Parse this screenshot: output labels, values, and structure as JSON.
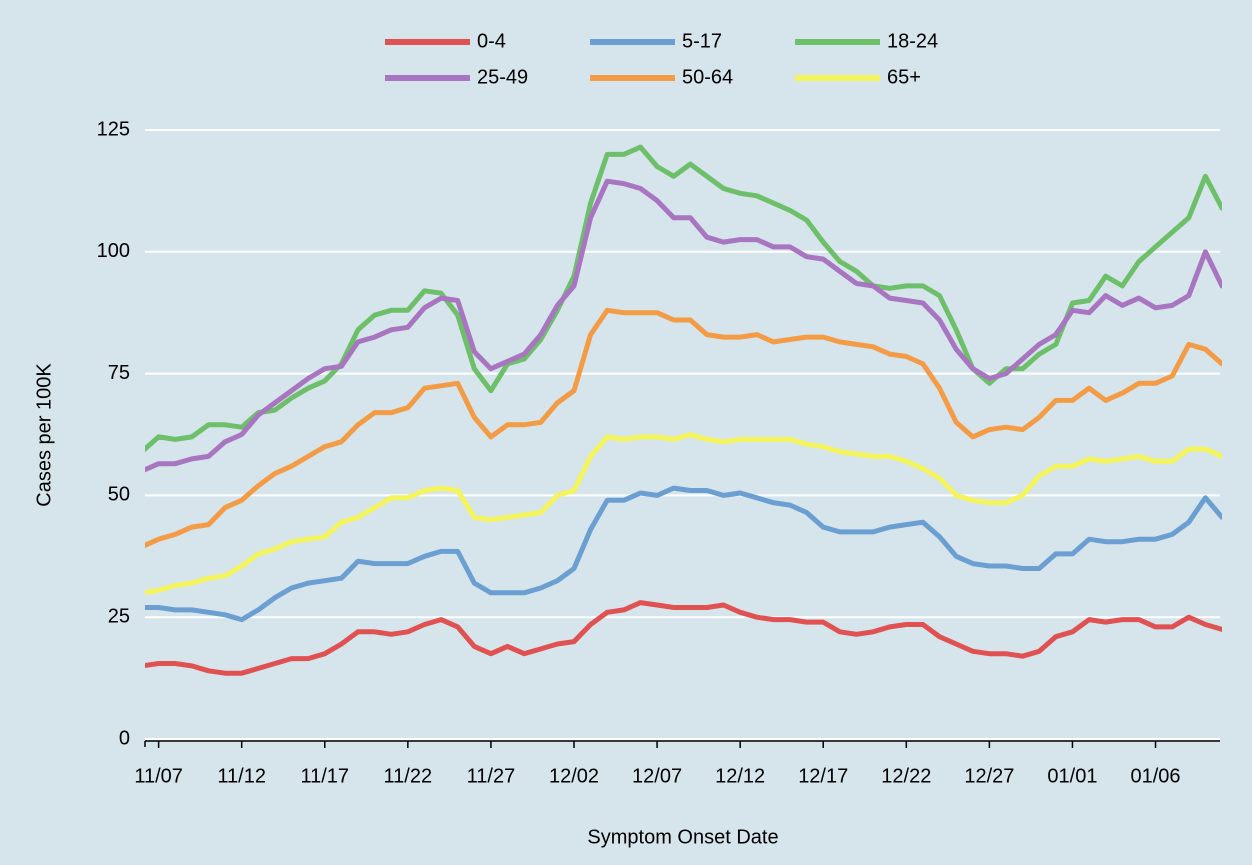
{
  "chart_data": {
    "type": "line",
    "x_label": "Symptom Onset Date",
    "y_label": "Cases per 100K",
    "categories": [
      null,
      "11/07",
      null,
      null,
      null,
      null,
      "11/12",
      null,
      null,
      null,
      null,
      "11/17",
      null,
      null,
      null,
      null,
      "11/22",
      null,
      null,
      null,
      null,
      "11/27",
      null,
      null,
      null,
      null,
      "12/02",
      null,
      null,
      null,
      null,
      "12/07",
      null,
      null,
      null,
      null,
      "12/12",
      null,
      null,
      null,
      null,
      "12/17",
      null,
      null,
      null,
      null,
      "12/22",
      null,
      null,
      null,
      null,
      "12/27",
      null,
      null,
      null,
      null,
      "01/01",
      null,
      null,
      null,
      null,
      "01/06",
      null,
      null,
      null,
      null
    ],
    "series": [
      {
        "name": "0-4",
        "color": "#e05252",
        "values": [
          15,
          15.5,
          15.5,
          15,
          14,
          13.5,
          13.5,
          14.5,
          15.5,
          16.5,
          16.5,
          17.5,
          19.5,
          22,
          22,
          21.5,
          22,
          23.5,
          24.5,
          23,
          19,
          17.5,
          19,
          17.5,
          18.5,
          19.5,
          20,
          23.5,
          26,
          26.5,
          28,
          27.5,
          27,
          27,
          27,
          27.5,
          26,
          25,
          24.5,
          24.5,
          24,
          24,
          22,
          21.5,
          22,
          23,
          23.5,
          23.5,
          21,
          19.5,
          18,
          17.5,
          17.5,
          17,
          18,
          21,
          22,
          24.5,
          24,
          24.5,
          24.5,
          23,
          23,
          25,
          23.5,
          22.5
        ]
      },
      {
        "name": "5-17",
        "color": "#6b9fd1",
        "values": [
          27,
          27,
          26.5,
          26.5,
          26,
          25.5,
          24.5,
          26.5,
          29,
          31,
          32,
          32.5,
          33,
          36.5,
          36,
          36,
          36,
          37.5,
          38.5,
          38.5,
          32,
          30,
          30,
          30,
          31,
          32.5,
          35,
          43,
          49,
          49,
          50.5,
          50,
          51.5,
          51,
          51,
          50,
          50.5,
          49.5,
          48.5,
          48,
          46.5,
          43.5,
          42.5,
          42.5,
          42.5,
          43.5,
          44,
          44.5,
          41.5,
          37.5,
          36,
          35.5,
          35.5,
          35,
          35,
          38,
          38,
          41,
          40.5,
          40.5,
          41,
          41,
          42,
          44.5,
          49.5,
          45.5
        ]
      },
      {
        "name": "18-24",
        "color": "#6dbf69",
        "values": [
          59,
          62,
          61.5,
          62,
          64.5,
          64.5,
          64,
          67,
          67.5,
          70,
          72,
          73.5,
          77,
          84,
          87,
          88,
          88,
          92,
          91.5,
          87,
          76,
          71.5,
          77,
          78,
          82,
          88,
          95,
          110,
          120,
          120,
          121.5,
          117.5,
          115.5,
          118,
          115.5,
          113,
          112,
          111.5,
          110,
          108.5,
          106.5,
          102,
          98,
          96,
          93,
          92.5,
          93,
          93,
          91,
          84,
          76,
          73,
          76,
          76,
          79,
          81,
          89.5,
          90,
          95,
          93,
          98,
          101,
          104,
          107,
          115.5,
          109
        ]
      },
      {
        "name": "25-49",
        "color": "#a875c0",
        "values": [
          55,
          56.5,
          56.5,
          57.5,
          58,
          61,
          62.5,
          66.5,
          69,
          71.5,
          74,
          76,
          76.5,
          81.5,
          82.5,
          84,
          84.5,
          88.5,
          90.5,
          90,
          79.5,
          76,
          77.5,
          79,
          83,
          89,
          93,
          107,
          114.5,
          114,
          113,
          110.5,
          107,
          107,
          103,
          102,
          102.5,
          102.5,
          101,
          101,
          99,
          98.5,
          96,
          93.5,
          93,
          90.5,
          90,
          89.5,
          86,
          80,
          76,
          74,
          75,
          78,
          81,
          83,
          88,
          87.5,
          91,
          89,
          90.5,
          88.5,
          89,
          91,
          100,
          93
        ]
      },
      {
        "name": "50-64",
        "color": "#f39c45",
        "values": [
          39.5,
          41,
          42,
          43.5,
          44,
          47.5,
          49,
          52,
          54.5,
          56,
          58,
          60,
          61,
          64.5,
          67,
          67,
          68,
          72,
          72.5,
          73,
          66,
          62,
          64.5,
          64.5,
          65,
          69,
          71.5,
          83,
          88,
          87.5,
          87.5,
          87.5,
          86,
          86,
          83,
          82.5,
          82.5,
          83,
          81.5,
          82,
          82.5,
          82.5,
          81.5,
          81,
          80.5,
          79,
          78.5,
          77,
          72,
          65,
          62,
          63.5,
          64,
          63.5,
          66,
          69.5,
          69.5,
          72,
          69.5,
          71,
          73,
          73,
          74.5,
          81,
          80,
          77
        ]
      },
      {
        "name": "65+",
        "color": "#f4f45c",
        "values": [
          30,
          30.5,
          31.5,
          32,
          33,
          33.5,
          35.5,
          38,
          39,
          40.5,
          41,
          41.5,
          44.5,
          45.5,
          47.5,
          49.5,
          49.5,
          51,
          51.5,
          51,
          45.5,
          45,
          45.5,
          46,
          46.5,
          50,
          51,
          58,
          62,
          61.5,
          62,
          62,
          61.5,
          62.5,
          61.5,
          61,
          61.5,
          61.5,
          61.5,
          61.5,
          60.5,
          60,
          59,
          58.5,
          58,
          58,
          57,
          55.5,
          53.5,
          50,
          49,
          48.5,
          48.5,
          50,
          54,
          56,
          56,
          57.5,
          57,
          57.5,
          58,
          57,
          57,
          59.5,
          59.5,
          58
        ]
      }
    ],
    "ylim": [
      0,
      125
    ],
    "yticks": [
      0,
      25,
      50,
      75,
      100,
      125
    ],
    "grid": true
  }
}
